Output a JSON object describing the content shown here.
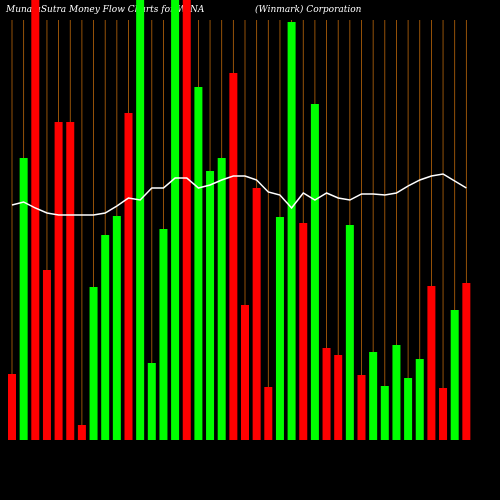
{
  "chart_data": {
    "type": "bar",
    "title": "MunafaSutra  Money Flow  Charts for WINA",
    "subtitle": "(Winmark) Corporation",
    "values": [
      66,
      282,
      440,
      170,
      318,
      318,
      15,
      153,
      205,
      224,
      327,
      440,
      77,
      211,
      440,
      440,
      353,
      269,
      282,
      367,
      135,
      252,
      53,
      223,
      418,
      217,
      336,
      92,
      85,
      215,
      65,
      88,
      54,
      95,
      62,
      81,
      154,
      52,
      130,
      157
    ],
    "colors": [
      "#ff0000",
      "#00ff00",
      "#ff0000",
      "#ff0000",
      "#ff0000",
      "#ff0000",
      "#ff0000",
      "#00ff00",
      "#00ff00",
      "#00ff00",
      "#ff0000",
      "#00ff00",
      "#00ff00",
      "#00ff00",
      "#00ff00",
      "#ff0000",
      "#00ff00",
      "#00ff00",
      "#00ff00",
      "#ff0000",
      "#ff0000",
      "#ff0000",
      "#ff0000",
      "#00ff00",
      "#00ff00",
      "#ff0000",
      "#00ff00",
      "#ff0000",
      "#ff0000",
      "#00ff00",
      "#ff0000",
      "#00ff00",
      "#00ff00",
      "#00ff00",
      "#00ff00",
      "#00ff00",
      "#ff0000",
      "#ff0000",
      "#00ff00",
      "#ff0000"
    ],
    "line_values": [
      235,
      238,
      232,
      227,
      225,
      225,
      225,
      225,
      227,
      234,
      242,
      240,
      252,
      252,
      262,
      262,
      252,
      255,
      260,
      264,
      264,
      260,
      248,
      245,
      232,
      247,
      240,
      247,
      242,
      240,
      246,
      246,
      245,
      247,
      254,
      260,
      264,
      266,
      259,
      252
    ],
    "line_color": "#ffffff",
    "grid_color": "#b8650a",
    "ylim": [
      0,
      440
    ]
  }
}
